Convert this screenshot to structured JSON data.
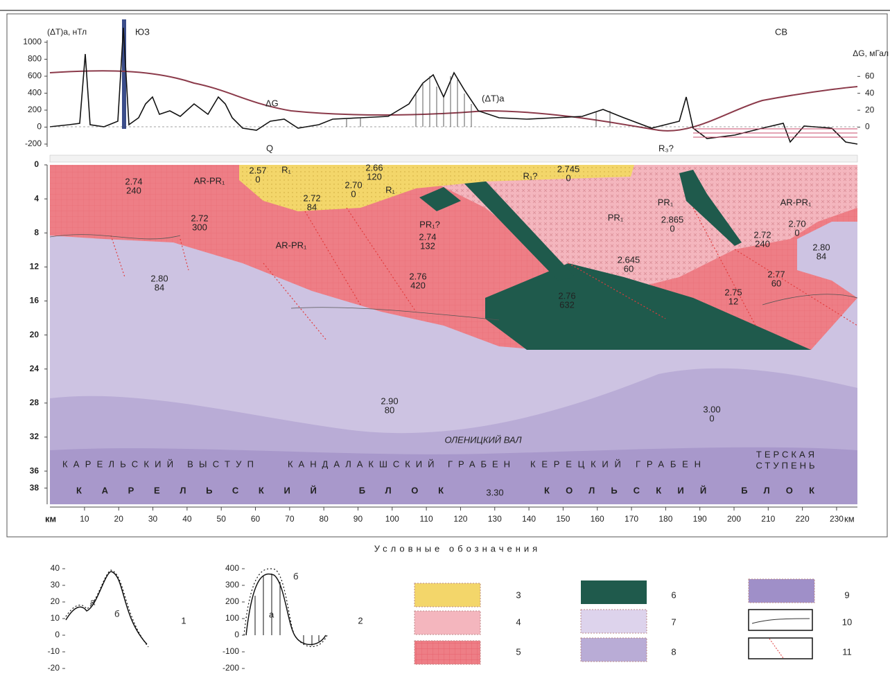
{
  "profile": {
    "left_axis_label": "(ΔT)a, нТл",
    "left_ticks": [
      1000,
      800,
      600,
      400,
      200,
      0,
      -200
    ],
    "right_axis_label": "ΔG, мГал",
    "right_ticks": [
      60,
      40,
      20,
      0
    ],
    "direction_left": "ЮЗ",
    "direction_right": "СВ",
    "curve_labels": [
      "ΔG",
      "(ΔT)a",
      "Q",
      "R₃?"
    ]
  },
  "section": {
    "depth_ticks": [
      0,
      4,
      8,
      12,
      16,
      20,
      24,
      28,
      32,
      36,
      38
    ],
    "distance_ticks": [
      10,
      20,
      30,
      40,
      50,
      60,
      70,
      80,
      90,
      100,
      110,
      120,
      130,
      140,
      150,
      160,
      170,
      180,
      190,
      200,
      210,
      220,
      230
    ],
    "distance_unit": "км",
    "blocks": [
      [
        "2.74",
        "240"
      ],
      [
        "2.72",
        "300"
      ],
      [
        "2.80",
        "84"
      ],
      [
        "2.57",
        "0"
      ],
      [
        "2.72",
        "84"
      ],
      [
        "2.70",
        "0"
      ],
      [
        "2.66",
        "120"
      ],
      [
        "2.74",
        "132"
      ],
      [
        "2.76",
        "420"
      ],
      [
        "2.76",
        "632"
      ],
      [
        "2.745",
        "0"
      ],
      [
        "2.865",
        "0"
      ],
      [
        "2.645",
        "60"
      ],
      [
        "2.72",
        "240"
      ],
      [
        "2.70",
        "0"
      ],
      [
        "2.80",
        "84"
      ],
      [
        "2.77",
        "60"
      ],
      [
        "2.75",
        "12"
      ],
      [
        "2.90",
        "80"
      ],
      [
        "3.00",
        "0"
      ]
    ],
    "units": [
      "AR-PR₁",
      "AR-PR₁",
      "R₁",
      "R₁",
      "PR₁?",
      "R₁?",
      "PR₁",
      "PR₁",
      "AR-PR₁"
    ],
    "structures": [
      "КАРЕЛЬСКИЙ ВЫСТУП",
      "КАНДАЛАКШСКИЙ ГРАБЕН",
      "КЕРЕЦКИЙ ГРАБЕН",
      "ТЕРСКАЯ",
      "СТУПЕНЬ",
      "ОЛЕНИЦКИЙ ВАЛ",
      "3.30"
    ],
    "blocks_regional": [
      "КАРЕЛЬСКИЙ БЛОК",
      "КОЛЬСКИЙ БЛОК"
    ]
  },
  "legend": {
    "title": "Условные обозначения",
    "chart1_ticks": [
      40,
      30,
      20,
      10,
      0,
      -10,
      -20
    ],
    "chart1_letters": [
      "а",
      "б"
    ],
    "chart2_ticks": [
      400,
      300,
      200,
      100,
      0,
      -100,
      -200
    ],
    "chart2_letters": [
      "б",
      "а"
    ],
    "items": [
      1,
      2,
      3,
      4,
      5,
      6,
      7,
      8,
      9,
      10,
      11
    ]
  }
}
